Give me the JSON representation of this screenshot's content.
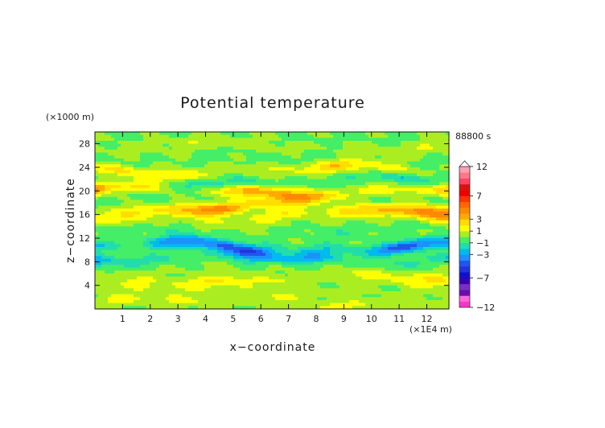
{
  "chart_data": {
    "type": "heatmap",
    "title": "Potential temperature",
    "time_label": "88800 s",
    "xlabel": "x−coordinate",
    "ylabel": "z−coordinate",
    "x_unit": "(×1E4 m)",
    "y_unit": "(×1000 m)",
    "xlim": [
      0,
      12.8
    ],
    "ylim": [
      0,
      30
    ],
    "x_ticks": [
      1,
      2,
      3,
      4,
      5,
      6,
      7,
      8,
      9,
      10,
      11,
      12
    ],
    "y_ticks": [
      4,
      8,
      12,
      16,
      20,
      24,
      28
    ],
    "x_tick_labels": [
      "1",
      "2",
      "3",
      "4",
      "5",
      "6",
      "7",
      "8",
      "9",
      "10",
      "11",
      "12"
    ],
    "y_tick_labels": [
      "4",
      "8",
      "12",
      "16",
      "20",
      "24",
      "28"
    ],
    "colorbar": {
      "levels": [
        -12,
        -11,
        -10,
        -9,
        -8,
        -7,
        -6,
        -5,
        -4,
        -3,
        -2,
        -1,
        0,
        1,
        2,
        3,
        4,
        5,
        6,
        7,
        8,
        9,
        10,
        11,
        12
      ],
      "colors": [
        "#ff33cc",
        "#ff66dd",
        "#6a0dad",
        "#7b2fc8",
        "#3a00b0",
        "#1010cc",
        "#2233dd",
        "#2255ee",
        "#1e90ff",
        "#00bbee",
        "#22ddaa",
        "#44ee66",
        "#aaee22",
        "#ffff00",
        "#ffdd00",
        "#ffaa00",
        "#ff8800",
        "#ff6600",
        "#ff3300",
        "#ee0000",
        "#dd1111",
        "#ff4466",
        "#ff7788",
        "#ffa0b4"
      ],
      "labels": [
        {
          "value": 12,
          "text": "12"
        },
        {
          "value": 7,
          "text": "7"
        },
        {
          "value": 3,
          "text": "3"
        },
        {
          "value": 1,
          "text": "1"
        },
        {
          "value": -1,
          "text": "−1"
        },
        {
          "value": -3,
          "text": "−3"
        },
        {
          "value": -7,
          "text": "−7"
        },
        {
          "value": -12,
          "text": "−12"
        }
      ]
    },
    "field_bands": [
      {
        "z": 1.0,
        "amplitude": 1.2
      },
      {
        "z": 3.0,
        "amplitude": 0.8
      },
      {
        "z": 5.0,
        "amplitude": 1.8
      },
      {
        "z": 6.8,
        "amplitude": 0.2
      },
      {
        "z": 8.5,
        "amplitude": -2.8
      },
      {
        "z": 10.5,
        "amplitude": -4.2
      },
      {
        "z": 13.0,
        "amplitude": -0.6
      },
      {
        "z": 15.5,
        "amplitude": 1.5
      },
      {
        "z": 17.0,
        "amplitude": 4.0
      },
      {
        "z": 18.6,
        "amplitude": -0.4
      },
      {
        "z": 20.0,
        "amplitude": 4.2
      },
      {
        "z": 21.6,
        "amplitude": -2.0
      },
      {
        "z": 23.4,
        "amplitude": 2.4
      },
      {
        "z": 25.2,
        "amplitude": -0.5
      },
      {
        "z": 27.5,
        "amplitude": 0.8
      },
      {
        "z": 29.5,
        "amplitude": -0.2
      }
    ]
  }
}
